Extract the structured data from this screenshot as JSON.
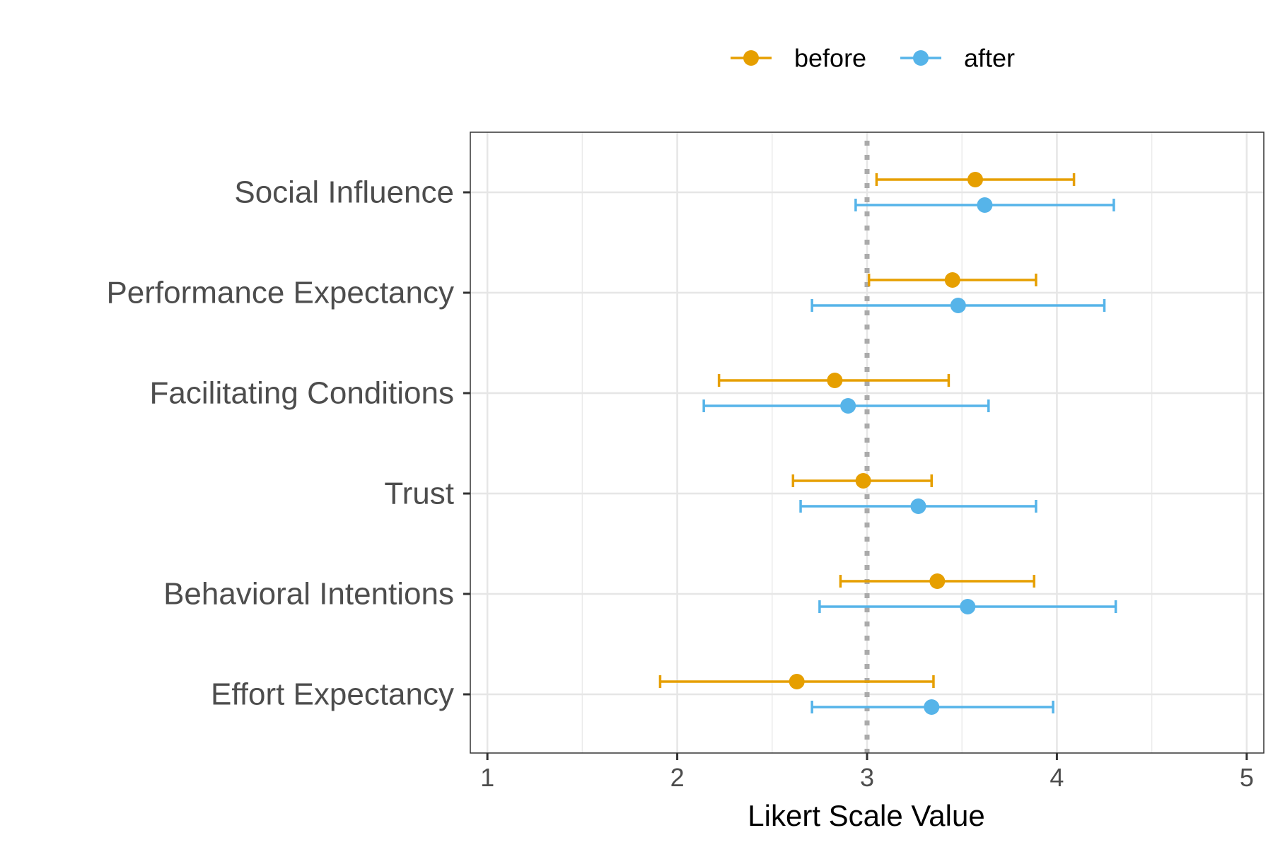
{
  "chart_data": {
    "type": "scatter",
    "title": "",
    "xlabel": "Likert Scale Value",
    "ylabel": "",
    "xlim": [
      0.91,
      5.09
    ],
    "xticks": [
      1,
      2,
      3,
      4,
      5
    ],
    "xtick_labels": [
      "1",
      "2",
      "3",
      "4",
      "5"
    ],
    "grid": true,
    "reference_line": {
      "x": 3,
      "style": "dotted",
      "color": "#aaaaaa"
    },
    "legend": {
      "position": "top",
      "entries": [
        "before",
        "after"
      ]
    },
    "categories": [
      "Social Influence",
      "Performance Expectancy",
      "Facilitating Conditions",
      "Trust",
      "Behavioral Intentions",
      "Effort Expectancy"
    ],
    "series": [
      {
        "name": "before",
        "color": "#E69F00",
        "values": [
          3.57,
          3.45,
          2.83,
          2.98,
          3.37,
          2.63
        ],
        "lower": [
          3.05,
          3.01,
          2.22,
          2.61,
          2.86,
          1.91
        ],
        "upper": [
          4.09,
          3.89,
          3.43,
          3.34,
          3.88,
          3.35
        ]
      },
      {
        "name": "after",
        "color": "#56B4E9",
        "values": [
          3.62,
          3.48,
          2.9,
          3.27,
          3.53,
          3.34
        ],
        "lower": [
          2.94,
          2.71,
          2.14,
          2.65,
          2.75,
          2.71
        ],
        "upper": [
          4.3,
          4.25,
          3.64,
          3.89,
          4.31,
          3.98
        ]
      }
    ]
  }
}
